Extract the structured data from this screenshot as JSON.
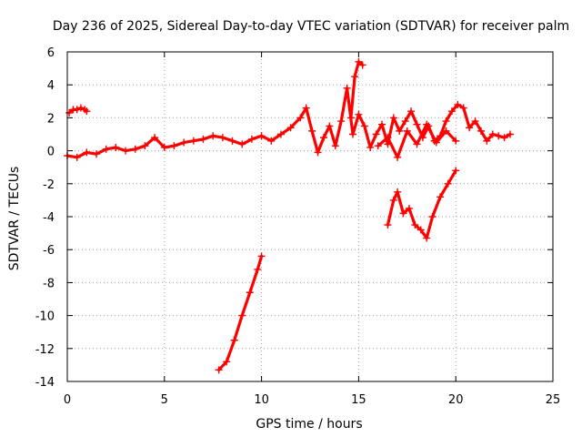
{
  "chart_data": {
    "type": "scatter",
    "title": "Day 236 of 2025, Sidereal Day-to-day VTEC variation (SDTVAR) for receiver palm",
    "xlabel": "GPS time / hours",
    "ylabel": "SDTVAR / TECUs",
    "xlim": [
      0,
      25
    ],
    "ylim": [
      -14,
      6
    ],
    "xticks": [
      0,
      5,
      10,
      15,
      20,
      25
    ],
    "yticks": [
      -14,
      -12,
      -10,
      -8,
      -6,
      -4,
      -2,
      0,
      2,
      4,
      6
    ],
    "grid": true,
    "legend": "none",
    "marker": "+",
    "color": "#ff0000",
    "series": [
      {
        "name": "main",
        "x": [
          0.0,
          0.5,
          1.0,
          1.5,
          2.0,
          2.5,
          3.0,
          3.5,
          4.0,
          4.5,
          5.0,
          5.5,
          6.0,
          6.5,
          7.0,
          7.5,
          8.0,
          8.5,
          9.0,
          9.5,
          10.0,
          10.5,
          11.0,
          11.5,
          12.0,
          12.3,
          12.6,
          12.9,
          13.2,
          13.5,
          13.8,
          14.1,
          14.4,
          14.7,
          15.0,
          15.3,
          15.6,
          15.9,
          16.2,
          16.5,
          16.8,
          17.1,
          17.4,
          17.7,
          18.0,
          18.3,
          18.6,
          18.9,
          19.2,
          19.5,
          19.8,
          20.1,
          20.4,
          20.7,
          21.0,
          21.3,
          21.6,
          21.9,
          22.2,
          22.5,
          22.8
        ],
        "y": [
          -0.3,
          -0.4,
          -0.1,
          -0.2,
          0.1,
          0.2,
          0.0,
          0.1,
          0.3,
          0.8,
          0.2,
          0.3,
          0.5,
          0.6,
          0.7,
          0.9,
          0.8,
          0.6,
          0.4,
          0.7,
          0.9,
          0.6,
          1.0,
          1.4,
          2.0,
          2.6,
          1.2,
          -0.1,
          0.8,
          1.5,
          0.3,
          1.8,
          3.8,
          1.0,
          2.2,
          1.5,
          0.2,
          1.0,
          1.6,
          0.4,
          2.0,
          1.2,
          1.8,
          2.4,
          1.6,
          0.8,
          1.5,
          0.6,
          0.9,
          1.8,
          2.4,
          2.8,
          2.6,
          1.4,
          1.8,
          1.2,
          0.6,
          1.0,
          0.9,
          0.8,
          1.0
        ]
      },
      {
        "name": "early-offset",
        "x": [
          0.1,
          0.3,
          0.5,
          0.7,
          0.9,
          1.0
        ],
        "y": [
          2.3,
          2.5,
          2.5,
          2.6,
          2.5,
          2.4
        ]
      },
      {
        "name": "evening-band",
        "x": [
          16.0,
          16.5,
          17.0,
          17.5,
          18.0,
          18.5,
          19.0,
          19.5,
          20.0
        ],
        "y": [
          0.3,
          0.8,
          -0.4,
          1.2,
          0.4,
          1.6,
          0.5,
          1.2,
          0.6
        ]
      },
      {
        "name": "peak-spike",
        "x": [
          14.6,
          14.8,
          15.0,
          15.2
        ],
        "y": [
          2.0,
          4.5,
          5.4,
          5.2
        ]
      },
      {
        "name": "descending-arc",
        "x": [
          7.8,
          8.2,
          8.6,
          9.0,
          9.4,
          9.8,
          10.0
        ],
        "y": [
          -13.3,
          -12.8,
          -11.5,
          -10.0,
          -8.6,
          -7.2,
          -6.4
        ]
      },
      {
        "name": "late-dip",
        "x": [
          16.5,
          16.8,
          17.0,
          17.3,
          17.6,
          17.9,
          18.2,
          18.5,
          18.8,
          19.2,
          19.6,
          20.0
        ],
        "y": [
          -4.5,
          -3.0,
          -2.5,
          -3.8,
          -3.5,
          -4.5,
          -4.8,
          -5.3,
          -4.0,
          -2.8,
          -2.0,
          -1.2
        ]
      }
    ]
  }
}
